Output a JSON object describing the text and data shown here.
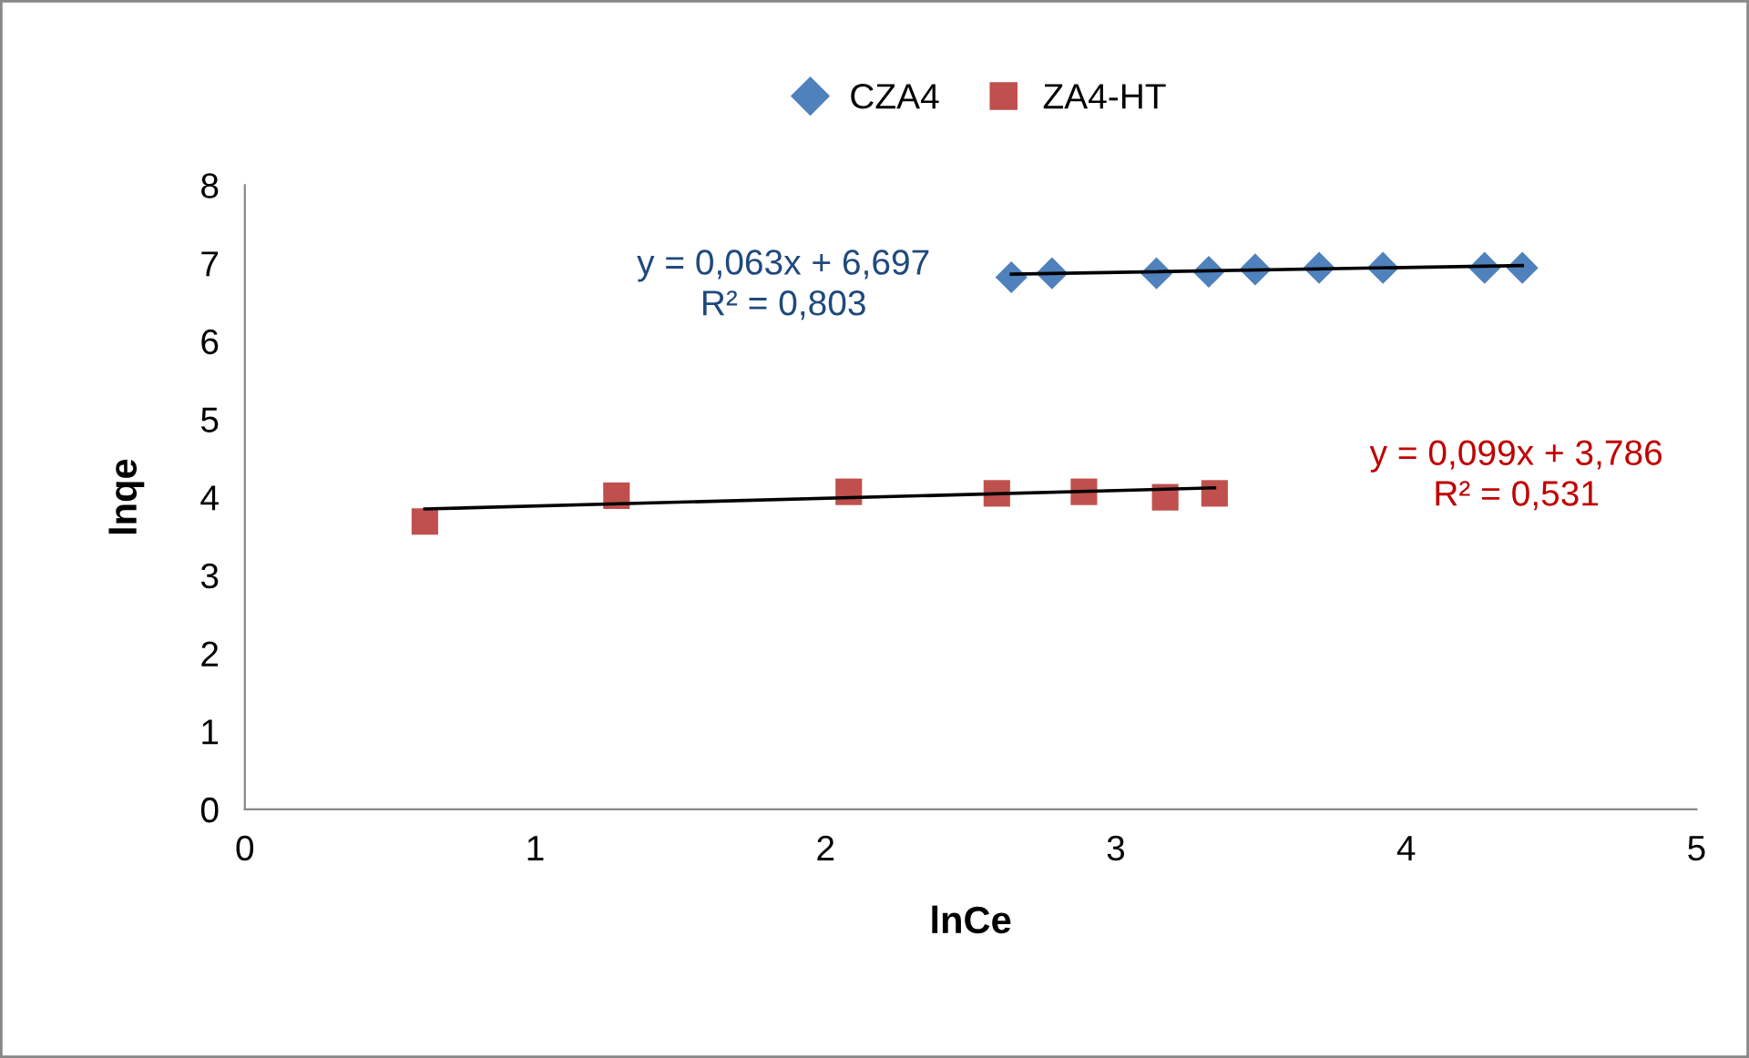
{
  "chart_data": {
    "type": "scatter",
    "xlabel": "lnCe",
    "ylabel": "lnqe",
    "xlim": [
      0,
      5
    ],
    "xticks": [
      0,
      1,
      2,
      3,
      4,
      5
    ],
    "ylim": [
      0,
      8
    ],
    "yticks": [
      0,
      1,
      2,
      3,
      4,
      5,
      6,
      7,
      8
    ],
    "grid": false,
    "legend": "top",
    "series": [
      {
        "name": "CZA4",
        "color": "#4f81bd",
        "marker": "diamond",
        "x": [
          2.64,
          2.78,
          3.14,
          3.32,
          3.48,
          3.7,
          3.92,
          4.27,
          4.4
        ],
        "values": [
          6.82,
          6.87,
          6.87,
          6.89,
          6.92,
          6.94,
          6.94,
          6.94,
          6.94
        ]
      },
      {
        "name": "ZA4-HT",
        "color": "#c0504d",
        "marker": "square",
        "x": [
          0.62,
          1.28,
          2.08,
          2.59,
          2.89,
          3.17,
          3.34
        ],
        "values": [
          3.69,
          4.02,
          4.07,
          4.05,
          4.07,
          4.0,
          4.05
        ]
      },
      {
        "type": "line",
        "color": "#000000",
        "marker": "none",
        "x": [
          2.64,
          4.4
        ],
        "values": [
          6.86,
          6.97
        ]
      },
      {
        "type": "line",
        "color": "#000000",
        "marker": "none",
        "x": [
          0.62,
          3.34
        ],
        "values": [
          3.85,
          4.12
        ]
      }
    ],
    "annotations": [
      "y = 0,063x + 6,697\nR² = 0,803",
      "y = 0,099x + 3,786\nR² = 0,531"
    ]
  }
}
